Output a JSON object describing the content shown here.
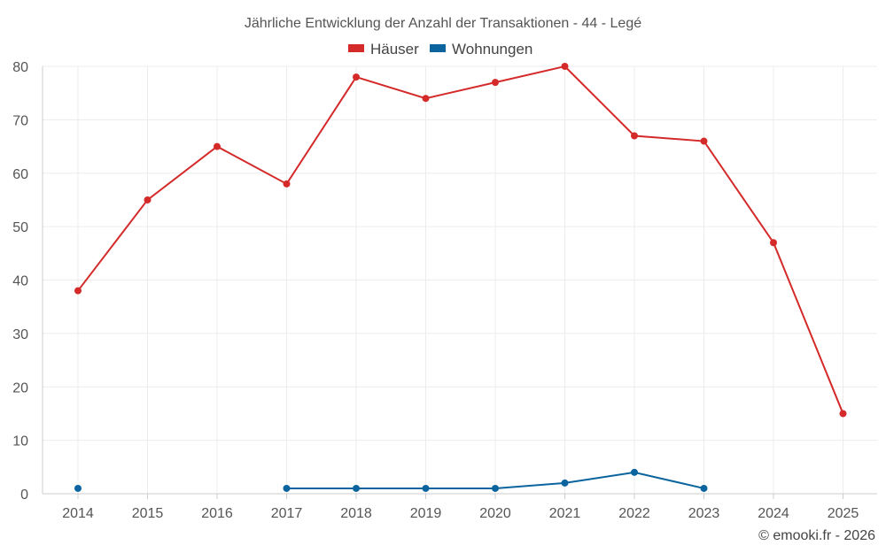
{
  "chart_data": {
    "type": "line",
    "title": "Jährliche Entwicklung der Anzahl der Transaktionen - 44 - Legé",
    "categories": [
      "2014",
      "2015",
      "2016",
      "2017",
      "2018",
      "2019",
      "2020",
      "2021",
      "2022",
      "2023",
      "2024",
      "2025"
    ],
    "series": [
      {
        "name": "Häuser",
        "color": "#d42a2a",
        "values": [
          38,
          55,
          65,
          58,
          78,
          74,
          77,
          80,
          67,
          66,
          47,
          15
        ]
      },
      {
        "name": "Wohnungen",
        "color": "#0b649e",
        "values": [
          1,
          null,
          null,
          1,
          1,
          1,
          1,
          2,
          4,
          1,
          null,
          null
        ]
      }
    ],
    "ylim": [
      0,
      80
    ],
    "yticks": [
      0,
      10,
      20,
      30,
      40,
      50,
      60,
      70,
      80
    ],
    "grid": true,
    "legend": "top-center",
    "xlabel": "",
    "ylabel": ""
  },
  "credit": "© emooki.fr - 2026"
}
